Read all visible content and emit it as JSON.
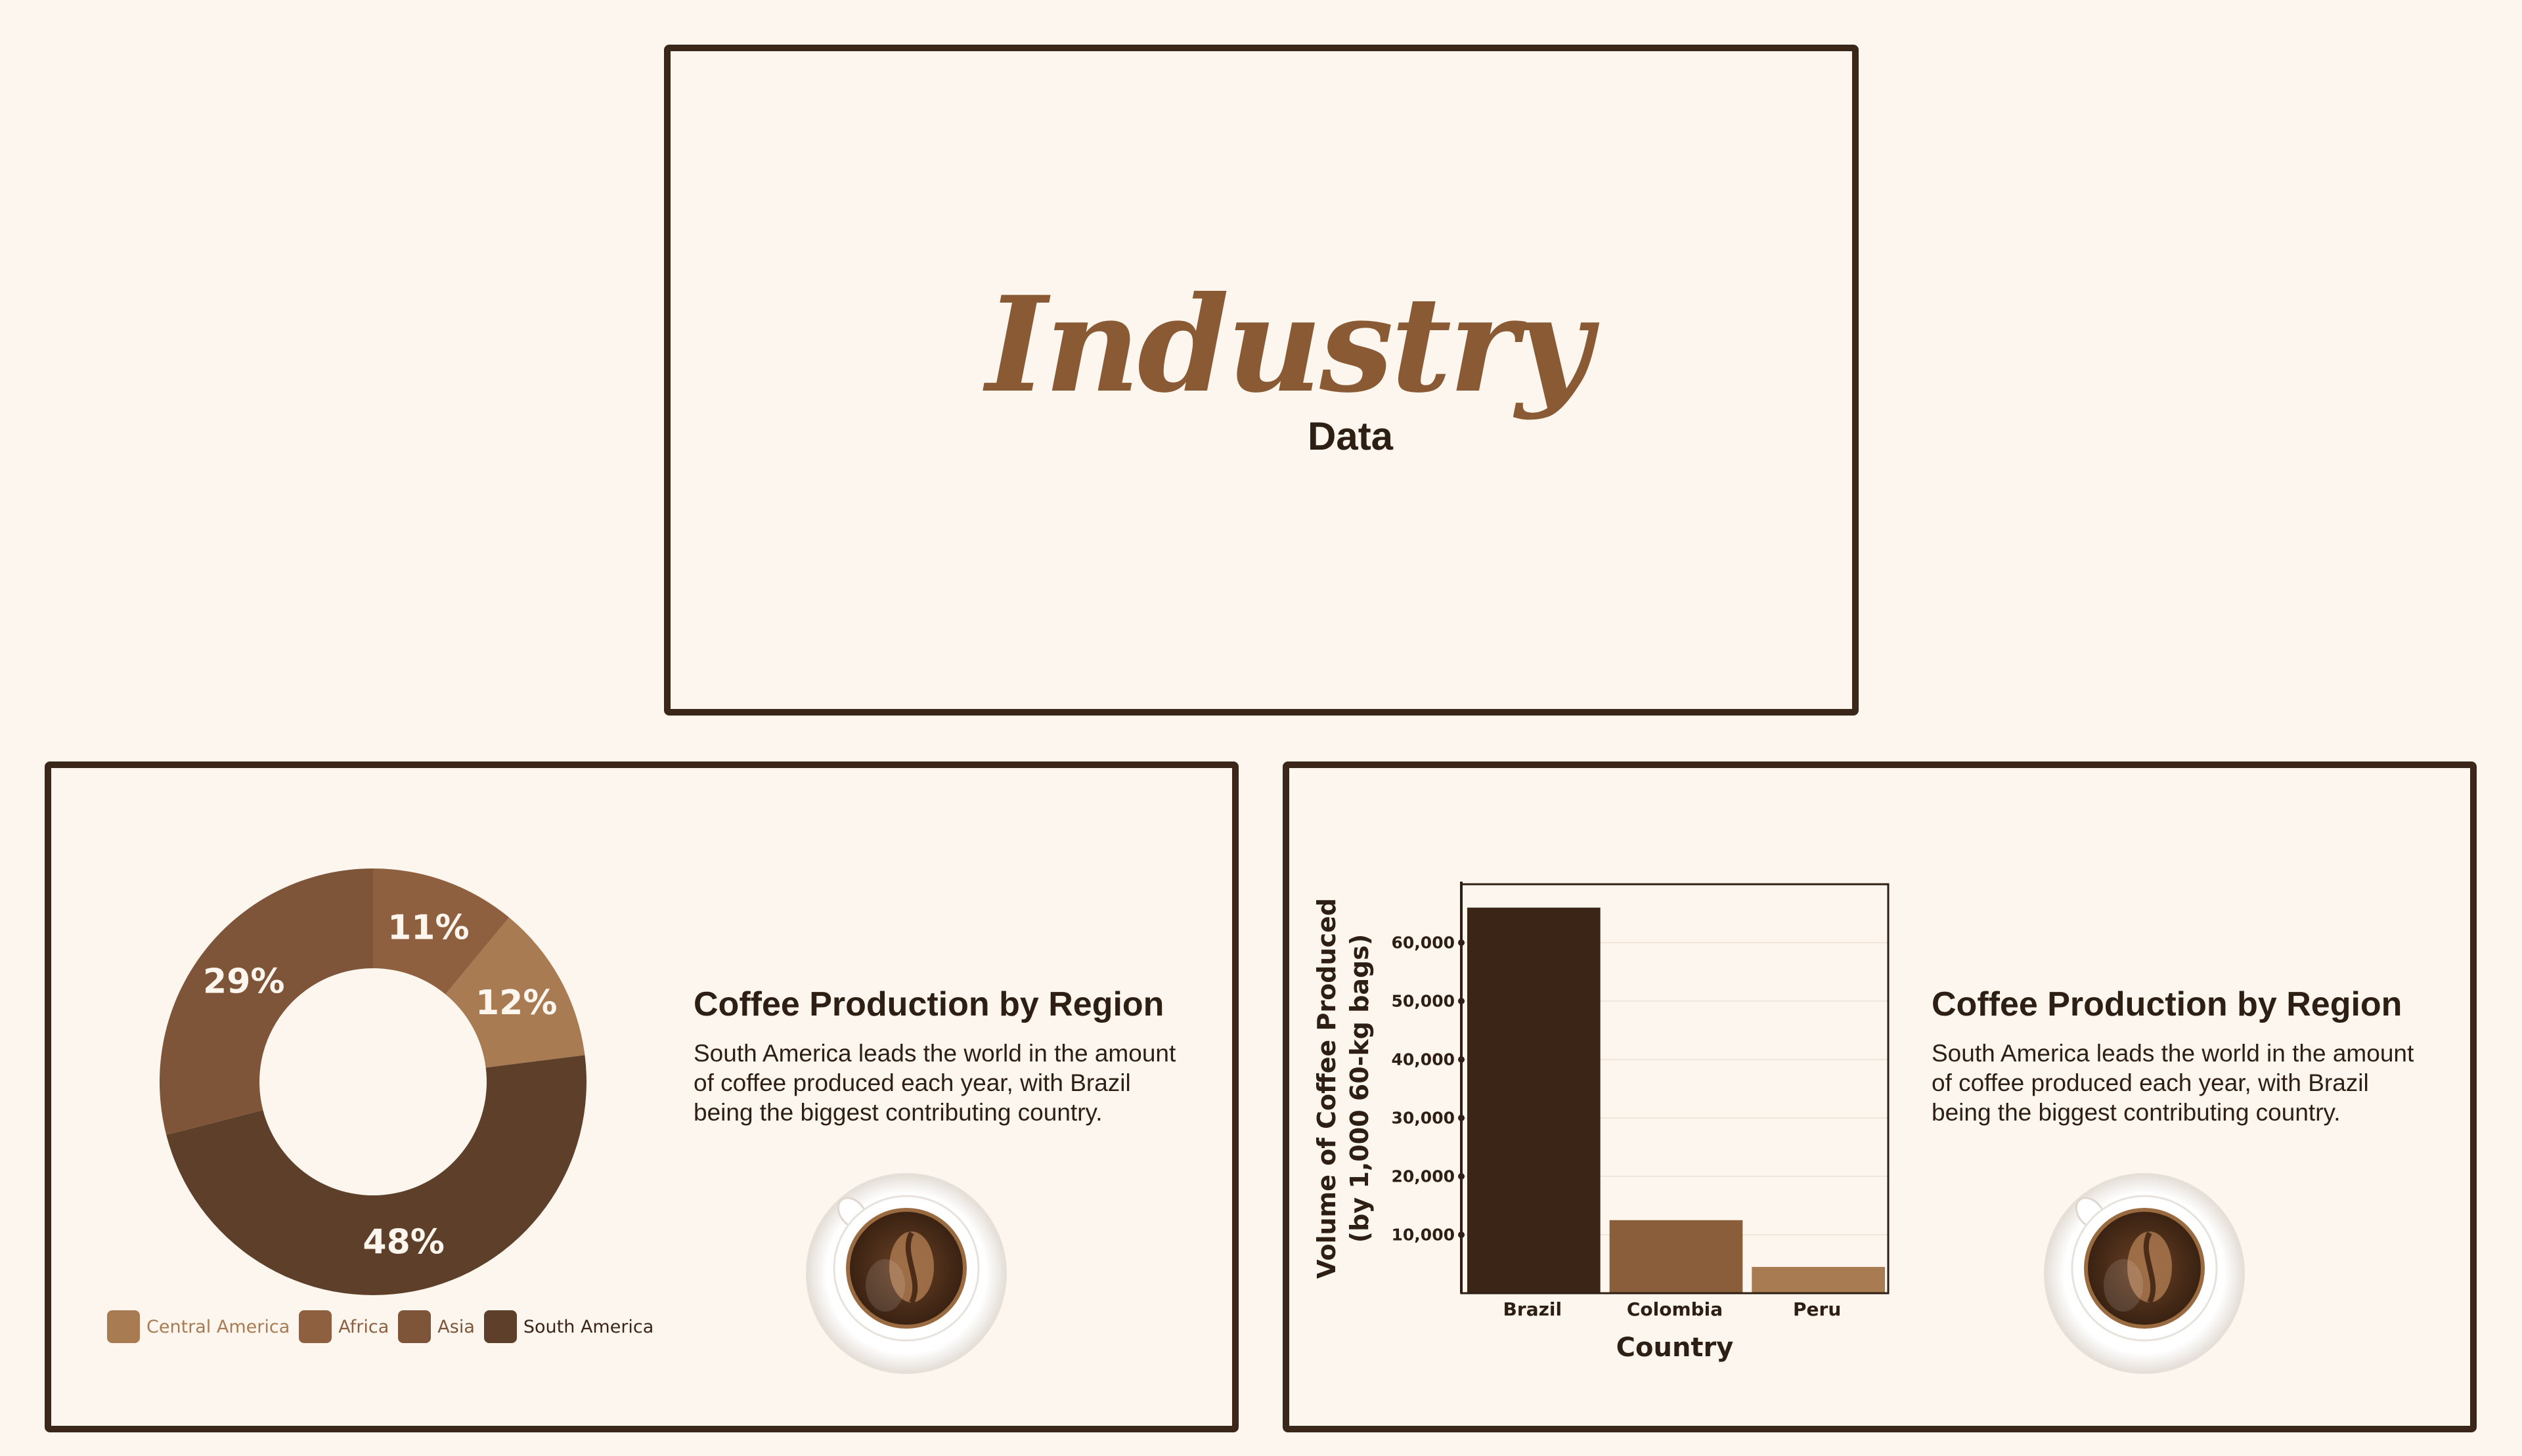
{
  "title_slide": {
    "title": "Industry",
    "subtitle": "Data"
  },
  "donut_slide": {
    "heading": "Coffee Production by Region",
    "body": "South America leads the world in the amount of coffee produced each year, with Brazil being the biggest contributing country.",
    "body_lines": [
      "South America leads the world in the amount",
      "of coffee produced each year, with Brazil",
      "being the biggest contributing country."
    ]
  },
  "bar_slide": {
    "heading": "Coffee Production by Region",
    "body": "South America leads the world in the amount of coffee produced each year, with Brazil being the biggest contributing country.",
    "body_lines": [
      "South America leads the world in the amount",
      "of coffee produced each year, with Brazil",
      "being the biggest contributing country."
    ]
  },
  "colors": {
    "background": "#fdf6ee",
    "frame": "#3a271a",
    "brown_dark": "#3b2517",
    "brown_mid": "#8a5e3b",
    "brown_light": "#a87b53"
  },
  "chart_data": [
    {
      "type": "pie",
      "variant": "donut",
      "categories": [
        "Central America",
        "Africa",
        "Asia",
        "South America"
      ],
      "values": [
        12,
        11,
        29,
        48
      ],
      "labels": [
        "12%",
        "11%",
        "29%",
        "48%"
      ],
      "colors": [
        "#a87b53",
        "#8f6040",
        "#7e5538",
        "#5e402a"
      ],
      "legend": "bottom"
    },
    {
      "type": "bar",
      "categories": [
        "Brazil",
        "Colombia",
        "Peru"
      ],
      "values": [
        66000,
        12500,
        4500
      ],
      "colors": [
        "#3b2517",
        "#8a5e3b",
        "#a87b53"
      ],
      "xlabel": "Country",
      "ylabel": [
        "Volume of Coffee Produced",
        "(by 1,000 60-kg bags)"
      ],
      "yticks": [
        10000,
        20000,
        30000,
        40000,
        50000,
        60000
      ],
      "ytick_labels": [
        "10,000",
        "20,000",
        "30,000",
        "40,000",
        "50,000",
        "60,000"
      ],
      "ylim": [
        0,
        70000
      ],
      "grid": true
    }
  ]
}
